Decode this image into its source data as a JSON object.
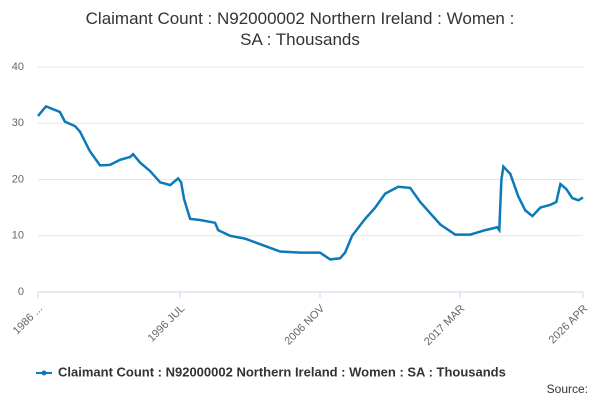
{
  "chart_data": {
    "type": "line",
    "title": "Claimant Count : N92000002 Northern Ireland : Women : SA : Thousands",
    "source": "Source:",
    "ylim": [
      0,
      40
    ],
    "yticks": [
      0,
      10,
      20,
      30,
      40
    ],
    "grid": true,
    "xlim": [
      1986.0,
      2026.25
    ],
    "xticks": [
      {
        "value": 1986.0,
        "label": "1986 ..."
      },
      {
        "value": 1996.5,
        "label": "1996 JUL"
      },
      {
        "value": 2006.83,
        "label": "2006 NOV"
      },
      {
        "value": 2017.17,
        "label": "2017 MAR"
      },
      {
        "value": 2026.25,
        "label": "2026 APR"
      }
    ],
    "legend": "bottom",
    "x": [
      1986.0,
      1986.59,
      1987.62,
      1987.99,
      1988.73,
      1989.1,
      1989.84,
      1990.58,
      1991.32,
      1992.06,
      1992.8,
      1993.02,
      1993.54,
      1994.28,
      1995.02,
      1995.76,
      1996.35,
      1996.57,
      1996.79,
      1997.23,
      1997.97,
      1999.08,
      1999.3,
      2000.19,
      2001.29,
      2002.4,
      2003.88,
      2005.36,
      2006.83,
      2007.57,
      2008.31,
      2008.68,
      2009.2,
      2010.16,
      2010.9,
      2011.64,
      2012.6,
      2013.49,
      2014.23,
      2014.97,
      2015.71,
      2016.82,
      2017.93,
      2019.04,
      2019.92,
      2020.07,
      2020.22,
      2020.37,
      2020.88,
      2021.47,
      2021.99,
      2022.51,
      2023.1,
      2023.84,
      2024.28,
      2024.58,
      2025.02,
      2025.46,
      2025.91,
      2026.25
    ],
    "series": [
      {
        "name": "Claimant Count : N92000002 Northern Ireland : Women : SA : Thousands",
        "color": "#0a7ab8",
        "values": [
          31.3,
          33,
          32,
          30.3,
          29.5,
          28.5,
          25,
          22.5,
          22.6,
          23.5,
          24,
          24.5,
          23,
          21.5,
          19.5,
          19,
          20.2,
          19.5,
          16.5,
          13,
          12.8,
          12.3,
          11,
          10,
          9.5,
          8.5,
          7.2,
          7,
          7,
          5.8,
          6,
          7,
          10,
          13,
          15,
          17.5,
          18.7,
          18.5,
          16,
          14,
          12,
          10.2,
          10.2,
          11,
          11.5,
          11,
          20,
          22.3,
          21,
          17,
          14.5,
          13.5,
          15,
          15.5,
          16,
          19.2,
          18.3,
          16.7,
          16.3,
          16.8
        ]
      }
    ]
  }
}
